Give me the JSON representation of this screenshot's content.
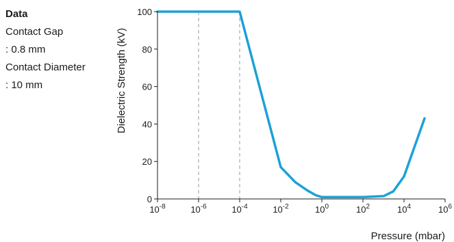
{
  "info": {
    "heading": "Data",
    "lines": [
      "Contact Gap",
      ": 0.8 mm",
      "Contact Diameter",
      ": 10 mm"
    ]
  },
  "chart_data": {
    "type": "line",
    "xlabel": "Pressure (mbar)",
    "ylabel": "Dielectric Strength (kV)",
    "x_scale": "log",
    "xlim": [
      1e-08,
      1000000.0
    ],
    "ylim": [
      0,
      100
    ],
    "x_ticks": [
      {
        "base": "10",
        "exp": "-8"
      },
      {
        "base": "10",
        "exp": "-6"
      },
      {
        "base": "10",
        "exp": "-4"
      },
      {
        "base": "10",
        "exp": "-2"
      },
      {
        "base": "10",
        "exp": "0"
      },
      {
        "base": "10",
        "exp": "2"
      },
      {
        "base": "10",
        "exp": "4"
      },
      {
        "base": "10",
        "exp": "6"
      }
    ],
    "y_ticks": [
      "0",
      "20",
      "40",
      "60",
      "80",
      "100"
    ],
    "dashed_gridlines_x": [
      1e-06,
      0.0001
    ],
    "series_color": "#1ba1d8",
    "series": [
      {
        "x": [
          1e-08,
          0.0001,
          0.01,
          0.05,
          0.2,
          0.5,
          1,
          3,
          10,
          100,
          1000,
          3000,
          10000,
          100000
        ],
        "y": [
          100,
          100,
          17,
          9,
          4.5,
          2,
          1,
          1,
          1,
          1,
          1.5,
          4,
          12,
          43
        ]
      }
    ]
  }
}
